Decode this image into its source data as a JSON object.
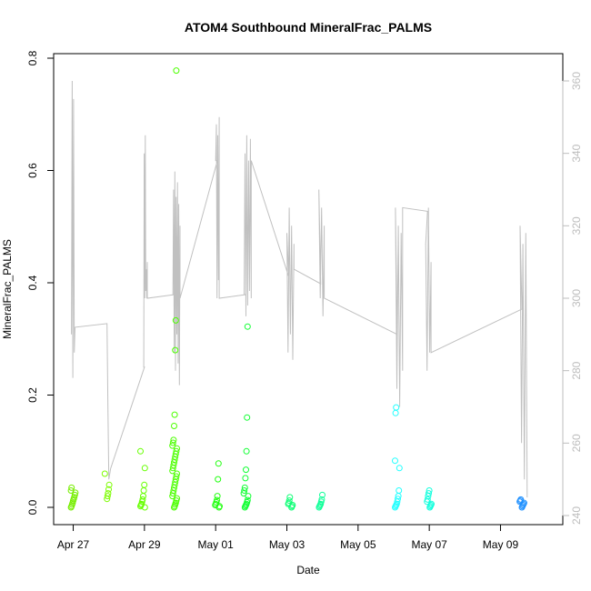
{
  "chart_data": {
    "type": "scatter",
    "title": "ATOM4 Southbound MineralFrac_PALMS",
    "xlabel": "Date",
    "ylabel": "MineralFrac_PALMS",
    "ylim": [
      0,
      0.8
    ],
    "y_ticks": [
      "0.0",
      "0.2",
      "0.4",
      "0.6",
      "0.8"
    ],
    "xlim_days": [
      -0.55,
      13.75
    ],
    "x_ticks": [
      {
        "day": 0,
        "label": "Apr 27"
      },
      {
        "day": 2,
        "label": "Apr 29"
      },
      {
        "day": 4,
        "label": "May 01"
      },
      {
        "day": 6,
        "label": "May 03"
      },
      {
        "day": 8,
        "label": "May 05"
      },
      {
        "day": 10,
        "label": "May 07"
      },
      {
        "day": 12,
        "label": "May 09"
      }
    ],
    "y2lim": [
      238,
      365
    ],
    "y2_ticks": [
      "240",
      "260",
      "280",
      "300",
      "320",
      "340",
      "360"
    ],
    "grid": false,
    "series": [
      {
        "kind": "points",
        "flights": [
          {
            "day": 0.0,
            "color": "#76ee00",
            "values": [
              0.0,
              0.002,
              0.005,
              0.008,
              0.012,
              0.015,
              0.018,
              0.022,
              0.026,
              0.03,
              0.035
            ]
          },
          {
            "day": 0.95,
            "color": "#7cfc00",
            "values": [
              0.015,
              0.02,
              0.025,
              0.032,
              0.04,
              0.06
            ]
          },
          {
            "day": 1.95,
            "color": "#66ff00",
            "values": [
              0.0,
              0.002,
              0.004,
              0.006,
              0.01,
              0.014,
              0.02,
              0.03,
              0.04,
              0.07,
              0.1
            ]
          },
          {
            "day": 2.85,
            "color": "#4cff00",
            "values": [
              0.0,
              0.002,
              0.005,
              0.008,
              0.012,
              0.016,
              0.02,
              0.025,
              0.03,
              0.035,
              0.04,
              0.045,
              0.05,
              0.055,
              0.06,
              0.065,
              0.07,
              0.075,
              0.08,
              0.085,
              0.09,
              0.095,
              0.1,
              0.105,
              0.11,
              0.115,
              0.12,
              0.145,
              0.165,
              0.28,
              0.333,
              0.778
            ]
          },
          {
            "day": 4.05,
            "color": "#22ff11",
            "values": [
              0.0,
              0.002,
              0.004,
              0.006,
              0.009,
              0.013,
              0.02,
              0.05,
              0.078
            ]
          },
          {
            "day": 4.85,
            "color": "#11ff33",
            "values": [
              0.0,
              0.002,
              0.004,
              0.006,
              0.009,
              0.013,
              0.02,
              0.025,
              0.03,
              0.035,
              0.052,
              0.067,
              0.1,
              0.16,
              0.322
            ]
          },
          {
            "day": 6.1,
            "color": "#11ff77",
            "values": [
              0.0,
              0.002,
              0.004,
              0.006,
              0.008,
              0.012,
              0.018
            ]
          },
          {
            "day": 6.95,
            "color": "#11ff99",
            "values": [
              0.0,
              0.002,
              0.004,
              0.006,
              0.01,
              0.014,
              0.022
            ]
          },
          {
            "day": 10.0,
            "color": "#11ffdd",
            "values": [
              0.0,
              0.002,
              0.004,
              0.006,
              0.01,
              0.014,
              0.02,
              0.025,
              0.03
            ]
          },
          {
            "day": 9.1,
            "color": "#22ffff",
            "values": [
              0.0,
              0.002,
              0.004,
              0.006,
              0.01,
              0.015,
              0.02,
              0.03,
              0.07,
              0.083,
              0.168,
              0.178
            ]
          },
          {
            "day": 12.6,
            "color": "#1e90ff",
            "values": [
              0.0,
              0.002,
              0.004,
              0.006,
              0.008,
              0.01,
              0.012,
              0.014
            ]
          }
        ]
      },
      {
        "kind": "line",
        "axis": "right",
        "color": "#c0c0c0",
        "segments": [
          {
            "day_start": -0.05,
            "day_end": 0.05,
            "values": [
              290,
              360,
              278,
              355,
              285,
              292
            ]
          },
          {
            "day_start": 0.05,
            "day_end": 0.95,
            "values": [
              292,
              293
            ]
          },
          {
            "day_start": 0.95,
            "day_end": 1.0,
            "values": [
              293,
              270,
              250
            ]
          },
          {
            "day_start": 1.05,
            "day_end": 2.0,
            "values": [
              253,
              281
            ]
          },
          {
            "day_start": 1.98,
            "day_end": 2.08,
            "values": [
              281,
              340,
              300,
              345,
              302,
              308,
              300,
              310
            ]
          },
          {
            "day_start": 2.08,
            "day_end": 2.85,
            "values": [
              300,
              301
            ]
          },
          {
            "day_start": 2.8,
            "day_end": 3.0,
            "values": [
              301,
              330,
              285,
              335,
              280,
              328,
              290,
              332,
              282,
              326,
              276,
              320
            ]
          },
          {
            "day_start": 3.0,
            "day_end": 4.05,
            "values": [
              300,
              338
            ]
          },
          {
            "day_start": 4.0,
            "day_end": 4.1,
            "values": [
              338,
              348,
              300,
              345,
              305,
              350
            ]
          },
          {
            "day_start": 4.1,
            "day_end": 4.85,
            "values": [
              300,
              301
            ]
          },
          {
            "day_start": 4.8,
            "day_end": 5.0,
            "values": [
              301,
              340,
              295,
              345,
              298,
              338,
              302,
              344,
              300
            ]
          },
          {
            "day_start": 5.0,
            "day_end": 6.05,
            "values": [
              338,
              306
            ]
          },
          {
            "day_start": 6.0,
            "day_end": 6.2,
            "values": [
              318,
              285,
              325,
              290,
              320,
              283,
              315
            ]
          },
          {
            "day_start": 6.2,
            "day_end": 6.95,
            "values": [
              308,
              304
            ]
          },
          {
            "day_start": 6.9,
            "day_end": 7.05,
            "values": [
              330,
              300,
              325,
              295,
              320
            ]
          },
          {
            "day_start": 7.05,
            "day_end": 9.1,
            "values": [
              300,
              290
            ]
          },
          {
            "day_start": 9.05,
            "day_end": 9.25,
            "values": [
              325,
              275,
              320,
              270,
              318,
              280
            ]
          },
          {
            "day_start": 9.25,
            "day_end": 9.95,
            "values": [
              325,
              324
            ]
          },
          {
            "day_start": 9.9,
            "day_end": 10.05,
            "values": [
              315,
              280,
              325,
              285,
              310
            ]
          },
          {
            "day_start": 10.05,
            "day_end": 12.6,
            "values": [
              285,
              297
            ]
          },
          {
            "day_start": 12.55,
            "day_end": 12.75,
            "values": [
              320,
              260,
              315,
              250,
              318,
              245
            ]
          }
        ]
      }
    ]
  }
}
